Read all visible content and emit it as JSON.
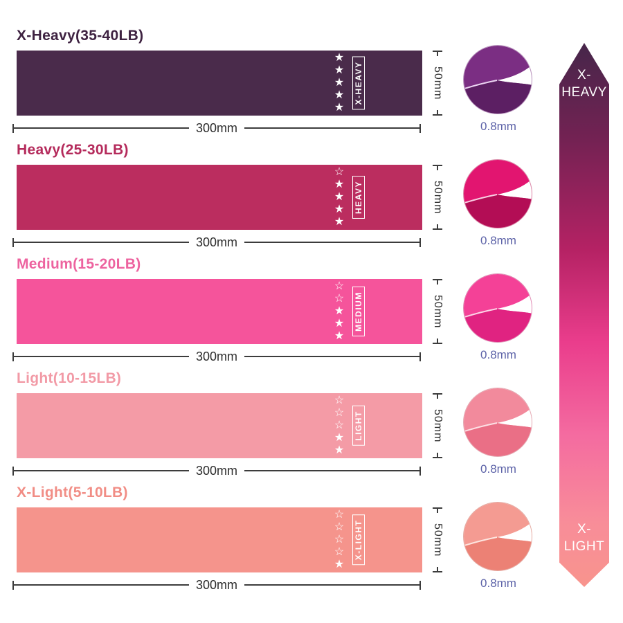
{
  "dimensions": {
    "width": "300mm",
    "height": "50mm",
    "thickness": "0.8mm"
  },
  "symbols": {
    "star_filled": "★",
    "star_outline": "☆"
  },
  "bands": [
    {
      "name": "x-heavy",
      "title": "X-Heavy(35-40LB)",
      "band_label": "X-HEAVY",
      "stars_filled": 5,
      "stars_total": 5,
      "band_color": "#4a2b4b",
      "title_color": "#3f2342",
      "thumb": {
        "main": "#7b2e83",
        "dark": "#5c1f63",
        "fold": "#ecd4f2",
        "ring": "#b995bd"
      }
    },
    {
      "name": "heavy",
      "title": "Heavy(25-30LB)",
      "band_label": "HEAVY",
      "stars_filled": 4,
      "stars_total": 5,
      "band_color": "#bb2d5f",
      "title_color": "#b42a5b",
      "thumb": {
        "main": "#e21570",
        "dark": "#b30d55",
        "fold": "#f9cfe3",
        "ring": "#d98aa8"
      }
    },
    {
      "name": "medium",
      "title": "Medium(15-20LB)",
      "band_label": "MEDIUM",
      "stars_filled": 3,
      "stars_total": 5,
      "band_color": "#f5549b",
      "title_color": "#ed639f",
      "thumb": {
        "main": "#f44197",
        "dark": "#e02381",
        "fold": "#fcd4e7",
        "ring": "#de8eb4"
      }
    },
    {
      "name": "light",
      "title": "Light(10-15LB)",
      "band_label": "LIGHT",
      "stars_filled": 2,
      "stars_total": 5,
      "band_color": "#f49ba6",
      "title_color": "#f29aa6",
      "thumb": {
        "main": "#f28a9c",
        "dark": "#ea6f86",
        "fold": "#fcdfe4",
        "ring": "#e3a9b2"
      }
    },
    {
      "name": "x-light",
      "title": "X-Light(5-10LB)",
      "band_label": "X-LIGHT",
      "stars_filled": 1,
      "stars_total": 5,
      "band_color": "#f5948c",
      "title_color": "#f18d85",
      "thumb": {
        "main": "#f49b92",
        "dark": "#ec8175",
        "fold": "#fde6e0",
        "ring": "#e3aba3"
      }
    }
  ],
  "scale_arrow": {
    "top_label": "X-HEAVY",
    "bottom_label": "X-LIGHT",
    "gradient": [
      "#46264a",
      "#742253",
      "#b52264",
      "#ea3d8c",
      "#f46ba0",
      "#f88d99",
      "#f8948d"
    ],
    "gradient_stops": [
      0,
      18,
      38,
      55,
      72,
      88,
      100
    ]
  }
}
